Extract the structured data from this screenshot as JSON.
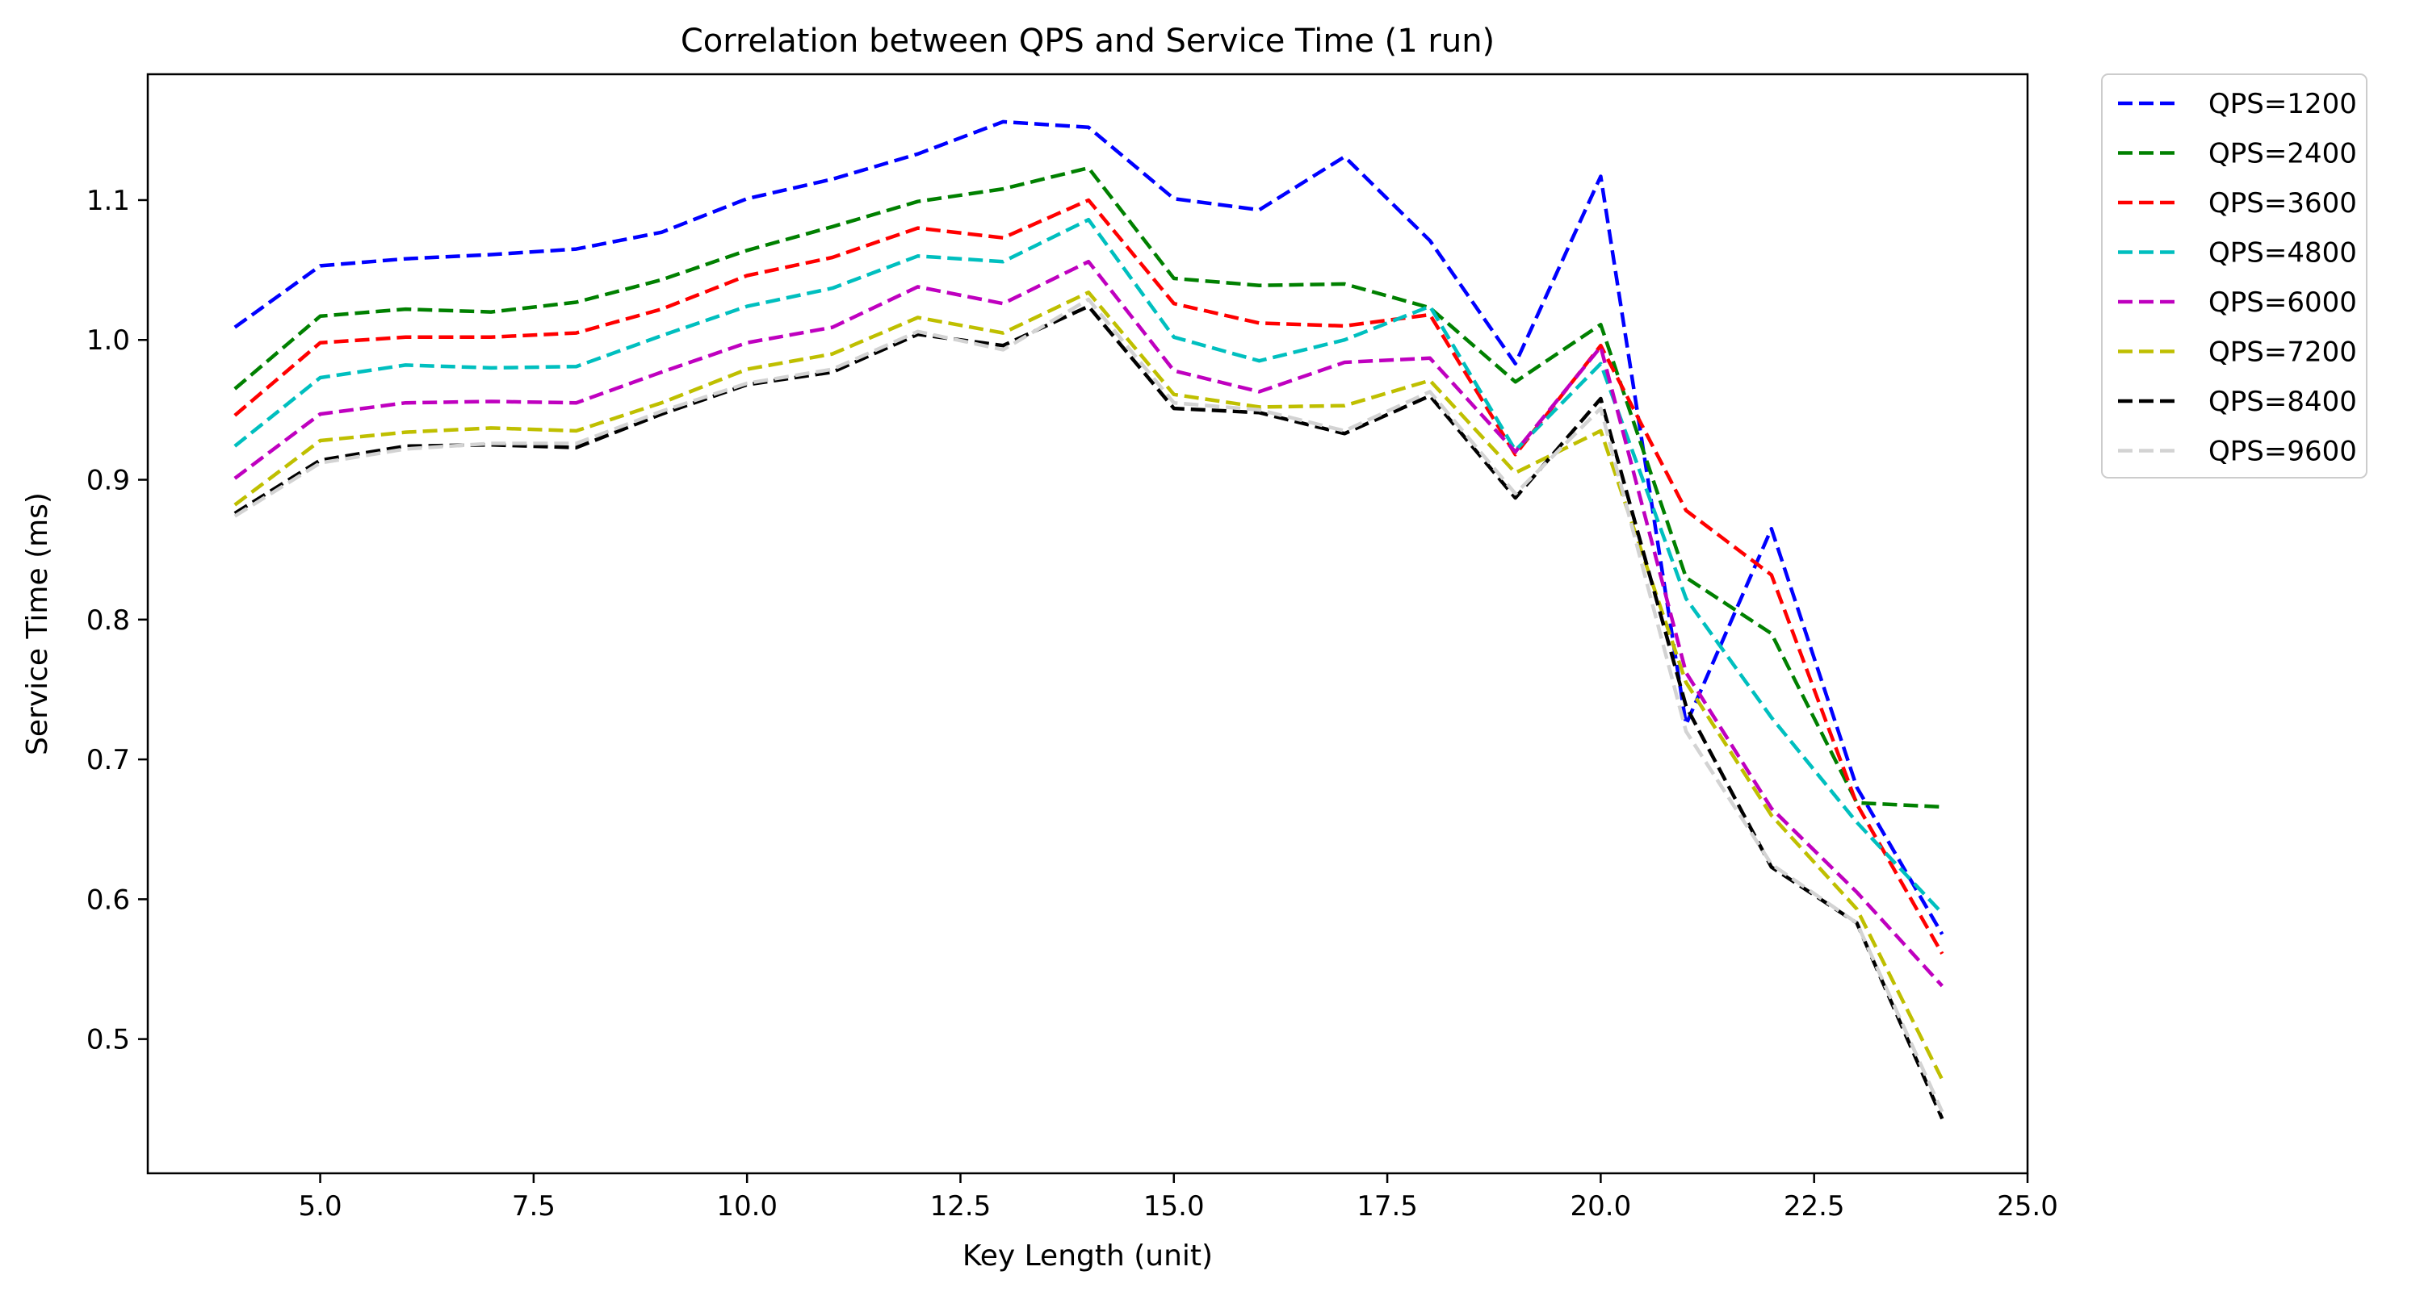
{
  "chart_data": {
    "type": "line",
    "title": "Correlation between QPS and Service Time (1 run)",
    "xlabel": "Key Length (unit)",
    "ylabel": "Service Time (ms)",
    "xlim": [
      2.98,
      25.0
    ],
    "ylim": [
      0.404,
      1.19
    ],
    "x_ticks": [
      5.0,
      7.5,
      10.0,
      12.5,
      15.0,
      17.5,
      20.0,
      22.5,
      25.0
    ],
    "x_tick_labels": [
      "5.0",
      "7.5",
      "10.0",
      "12.5",
      "15.0",
      "17.5",
      "20.0",
      "22.5",
      "25.0"
    ],
    "y_ticks": [
      0.5,
      0.6,
      0.7,
      0.8,
      0.9,
      1.0,
      1.1
    ],
    "y_tick_labels": [
      "0.5",
      "0.6",
      "0.7",
      "0.8",
      "0.9",
      "1.0",
      "1.1"
    ],
    "grid": false,
    "legend_position": "outside-top-right",
    "line_style": "dashed",
    "x": [
      4,
      5,
      6,
      7,
      8,
      9,
      10,
      11,
      12,
      13,
      14,
      15,
      16,
      17,
      18,
      19,
      20,
      21,
      22,
      23,
      24
    ],
    "series": [
      {
        "name": "QPS=1200",
        "color": "#0000ff",
        "values": [
          1.009,
          1.053,
          1.058,
          1.061,
          1.065,
          1.077,
          1.101,
          1.115,
          1.133,
          1.156,
          1.152,
          1.101,
          1.093,
          1.131,
          1.071,
          0.983,
          1.117,
          0.725,
          0.865,
          0.68,
          0.575
        ]
      },
      {
        "name": "QPS=2400",
        "color": "#008000",
        "values": [
          0.965,
          1.017,
          1.022,
          1.02,
          1.027,
          1.043,
          1.064,
          1.081,
          1.099,
          1.108,
          1.123,
          1.044,
          1.039,
          1.04,
          1.023,
          0.97,
          1.011,
          0.83,
          0.79,
          0.669,
          0.666
        ]
      },
      {
        "name": "QPS=3600",
        "color": "#ff0000",
        "values": [
          0.946,
          0.998,
          1.002,
          1.002,
          1.005,
          1.022,
          1.046,
          1.059,
          1.08,
          1.073,
          1.1,
          1.026,
          1.012,
          1.01,
          1.018,
          0.918,
          0.996,
          0.878,
          0.832,
          0.668,
          0.561
        ]
      },
      {
        "name": "QPS=4800",
        "color": "#00bfbf",
        "values": [
          0.924,
          0.973,
          0.982,
          0.98,
          0.981,
          1.003,
          1.024,
          1.037,
          1.06,
          1.056,
          1.086,
          1.002,
          0.985,
          1.0,
          1.024,
          0.921,
          0.983,
          0.815,
          0.73,
          0.655,
          0.59
        ]
      },
      {
        "name": "QPS=6000",
        "color": "#bf00bf",
        "values": [
          0.901,
          0.947,
          0.955,
          0.956,
          0.955,
          0.977,
          0.998,
          1.009,
          1.038,
          1.026,
          1.056,
          0.978,
          0.963,
          0.984,
          0.987,
          0.92,
          0.995,
          0.762,
          0.665,
          0.605,
          0.538
        ]
      },
      {
        "name": "QPS=7200",
        "color": "#bfbf00",
        "values": [
          0.882,
          0.928,
          0.934,
          0.937,
          0.935,
          0.955,
          0.979,
          0.99,
          1.016,
          1.005,
          1.034,
          0.961,
          0.952,
          0.953,
          0.971,
          0.905,
          0.935,
          0.755,
          0.66,
          0.593,
          0.471
        ]
      },
      {
        "name": "QPS=8400",
        "color": "#000000",
        "values": [
          0.876,
          0.914,
          0.924,
          0.925,
          0.923,
          0.947,
          0.968,
          0.977,
          1.004,
          0.996,
          1.024,
          0.951,
          0.948,
          0.933,
          0.96,
          0.887,
          0.958,
          0.738,
          0.623,
          0.583,
          0.443
        ]
      },
      {
        "name": "QPS=9600",
        "color": "#d3d3d3",
        "values": [
          0.874,
          0.912,
          0.922,
          0.926,
          0.926,
          0.949,
          0.969,
          0.979,
          1.006,
          0.993,
          1.029,
          0.955,
          0.95,
          0.935,
          0.963,
          0.89,
          0.951,
          0.72,
          0.625,
          0.583,
          0.448
        ]
      }
    ]
  }
}
